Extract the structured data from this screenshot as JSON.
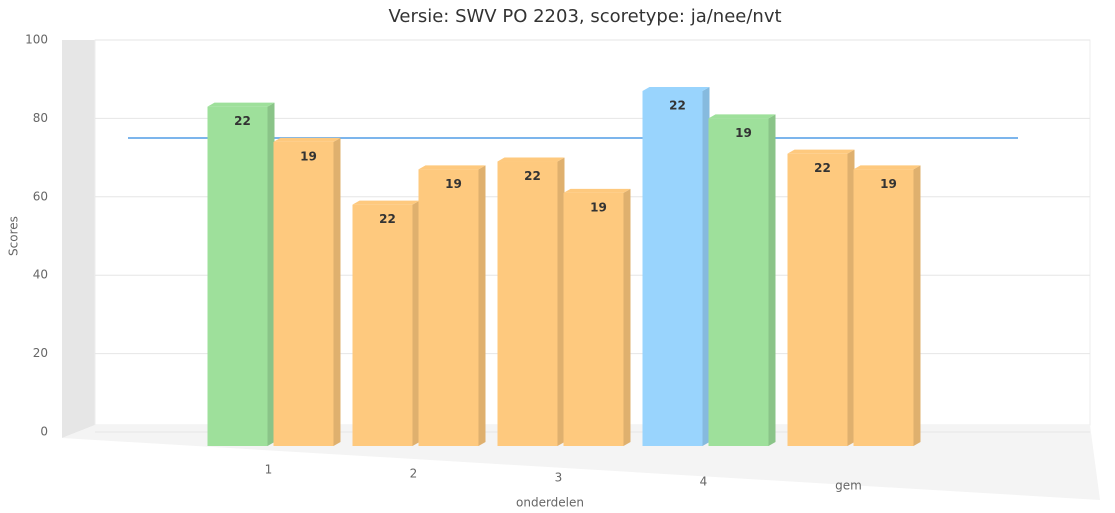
{
  "chart_data": {
    "type": "bar3d",
    "title": "Versie: SWV PO 2203, scoretype: ja/nee/nvt",
    "x_label": "onderdelen",
    "y_label": "Scores",
    "categories": [
      "1",
      "2",
      "3",
      "4",
      "gem"
    ],
    "series": [
      {
        "values": [
          83,
          58,
          69,
          87,
          71
        ],
        "value_labels": [
          "22",
          "22",
          "22",
          "22",
          "22"
        ],
        "colors": [
          "#9ee09b",
          "#fec97e",
          "#fec97e",
          "#99d4fd",
          "#fec97e"
        ]
      },
      {
        "values": [
          74,
          67,
          61,
          80,
          67
        ],
        "value_labels": [
          "19",
          "19",
          "19",
          "19",
          "19"
        ],
        "colors": [
          "#fec97e",
          "#fec97e",
          "#fec97e",
          "#9ee09b",
          "#fec97e"
        ]
      }
    ],
    "ylim": [
      0,
      100
    ],
    "yticks": [
      0,
      20,
      40,
      60,
      80,
      100
    ],
    "grid": true,
    "plot_line": 75,
    "plot_line_color": "#7cb5ec"
  }
}
